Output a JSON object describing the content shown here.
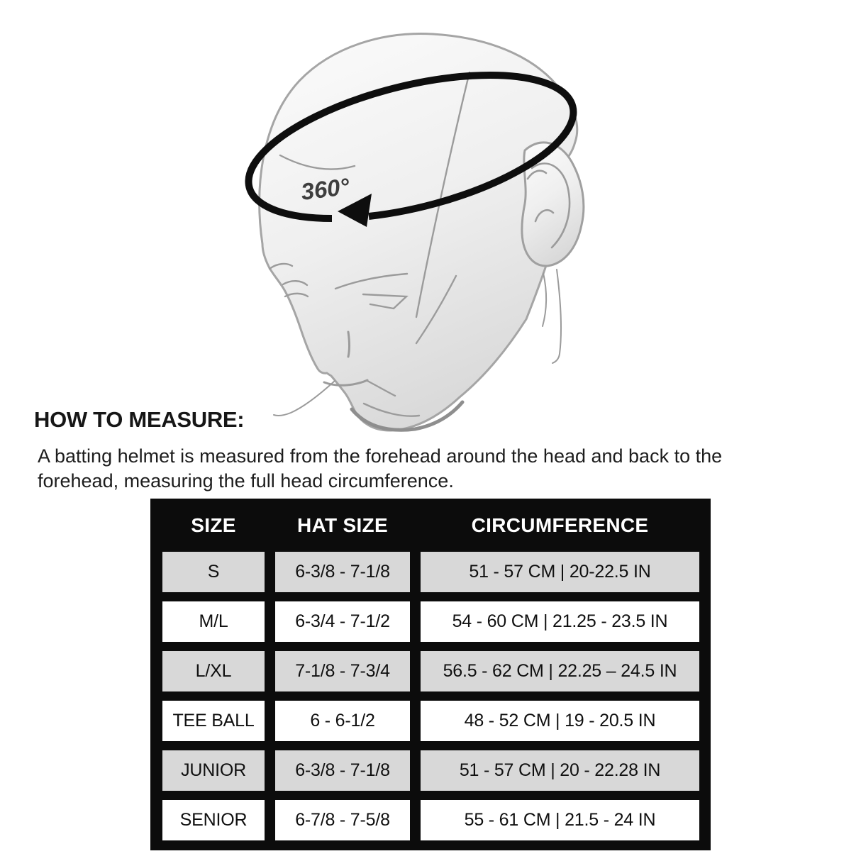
{
  "illustration": {
    "degree_label": "360°"
  },
  "heading": "HOW TO MEASURE:",
  "description_lines": [
    "A batting helmet is measured from the forehead around the head and back to the",
    "forehead, measuring the full head circumference."
  ],
  "table": {
    "headers": [
      "SIZE",
      "HAT SIZE",
      "CIRCUMFERENCE"
    ],
    "rows": [
      {
        "size": "S",
        "hat_size": "6-3/8 - 7-1/8",
        "circumference": "51 - 57 CM | 20-22.5 IN",
        "shade": "gray"
      },
      {
        "size": "M/L",
        "hat_size": "6-3/4 - 7-1/2",
        "circumference": "54 - 60 CM | 21.25 - 23.5 IN",
        "shade": "white"
      },
      {
        "size": "L/XL",
        "hat_size": "7-1/8 - 7-3/4",
        "circumference": "56.5 - 62 CM | 22.25 – 24.5 IN",
        "shade": "gray"
      },
      {
        "size": "TEE BALL",
        "hat_size": "6 - 6-1/2",
        "circumference": "48 - 52 CM | 19 - 20.5 IN",
        "shade": "white"
      },
      {
        "size": "JUNIOR",
        "hat_size": "6-3/8 - 7-1/8",
        "circumference": "51 - 57 CM | 20 - 22.28 IN",
        "shade": "gray"
      },
      {
        "size": "SENIOR",
        "hat_size": "6-7/8 - 7-5/8",
        "circumference": "55 - 61 CM | 21.5 - 24 IN",
        "shade": "white"
      }
    ]
  },
  "colors": {
    "table_background": "#0c0c0c",
    "row_shade_gray": "#d8d8d8",
    "row_shade_white": "#ffffff",
    "header_text": "#ffffff",
    "cell_text": "#101010",
    "band_black": "#0e0e0e"
  }
}
